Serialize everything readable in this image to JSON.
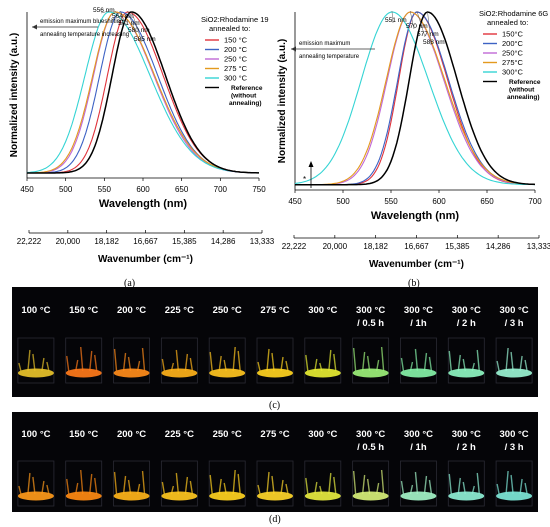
{
  "chart_data": [
    {
      "type": "line",
      "panel": "(a)",
      "title": "SiO2:Rhodamine 19 annealed to:",
      "xlabel": "Wavelength (nm)",
      "ylabel": "Normalized intensity (a.u.)",
      "x_ticks": [
        450,
        500,
        550,
        600,
        650,
        700,
        750
      ],
      "xlim": [
        450,
        750
      ],
      "secondary_xlabel": "Wavenumber (cm⁻¹)",
      "secondary_ticks": [
        "22,222",
        "20,000",
        "18,182",
        "16,667",
        "15,385",
        "14,286",
        "13,333"
      ],
      "grid": false,
      "legend_position": "top-right",
      "annotations": {
        "arrow_top": "emission maximum blueshifting",
        "arrow_bottom": "annealing temperature increasing"
      },
      "series": [
        {
          "name": "150 °C",
          "color": "#e0333b",
          "peak": 580,
          "peak_label": "580 nm",
          "sl": 26,
          "sr": 46
        },
        {
          "name": "200 °C",
          "color": "#3d62c4",
          "peak": 571,
          "peak_label": "571 nm",
          "sl": 27,
          "sr": 48
        },
        {
          "name": "250 °C",
          "color": "#c069d6",
          "peak": 564,
          "peak_label": "564 nm",
          "sl": 28,
          "sr": 50
        },
        {
          "name": "275 °C",
          "color": "#e39a1e",
          "peak": 564,
          "peak_label": "",
          "sl": 29,
          "sr": 51
        },
        {
          "name": "300 °C",
          "color": "#35d4d4",
          "peak": 556,
          "peak_label": "556 nm",
          "sl": 31,
          "sr": 53
        },
        {
          "name": "Reference (without annealing)",
          "color": "#000000",
          "peak": 585,
          "peak_label": "585 nm",
          "sl": 25,
          "sr": 44
        }
      ]
    },
    {
      "type": "line",
      "panel": "(b)",
      "title": "SiO2:Rhodamine 6G annealed to:",
      "xlabel": "Wavelength (nm)",
      "ylabel": "Normalized intensity (a.u.)",
      "x_ticks": [
        450,
        500,
        550,
        600,
        650,
        700
      ],
      "xlim": [
        450,
        700
      ],
      "secondary_xlabel": "Wavenumber (cm⁻¹)",
      "secondary_ticks": [
        "22,222",
        "20,000",
        "18,182",
        "16,667",
        "15,385",
        "14,286",
        "13,333"
      ],
      "grid": false,
      "legend_position": "top-right",
      "annotations": {
        "arrow_top": "emission maximum",
        "arrow_bottom": "annealing temperature",
        "star": "*"
      },
      "series": [
        {
          "name": "150°C",
          "color": "#e0333b",
          "peak": 577,
          "peak_label": "577 nm",
          "sl": 19,
          "sr": 32
        },
        {
          "name": "200°C",
          "color": "#3d62c4",
          "peak": 577,
          "peak_label": "",
          "sl": 20,
          "sr": 33
        },
        {
          "name": "250°C",
          "color": "#c069d6",
          "peak": 570,
          "peak_label": "570 nm",
          "sl": 24,
          "sr": 35
        },
        {
          "name": "275°C",
          "color": "#e39a1e",
          "peak": 570,
          "peak_label": "",
          "sl": 25,
          "sr": 36
        },
        {
          "name": "300°C",
          "color": "#35d4d4",
          "peak": 551,
          "peak_label": "551 nm",
          "sl": 32,
          "sr": 38
        },
        {
          "name": "Reference (without annealing)",
          "color": "#000000",
          "peak": 588,
          "peak_label": "588 nm",
          "sl": 19,
          "sr": 31
        }
      ]
    }
  ],
  "panels": {
    "a": "(a)",
    "b": "(b)",
    "c": "(c)",
    "d": "(d)"
  },
  "photos": {
    "c": {
      "labels": [
        "100 °C",
        "150 °C",
        "200 °C",
        "225 °C",
        "250 °C",
        "275 °C",
        "300 °C",
        "300 °C",
        "300 °C",
        "300 °C",
        "300 °C"
      ],
      "sublabels": [
        "",
        "",
        "",
        "",
        "",
        "",
        "",
        "/ 0.5 h",
        "/ 1h",
        "/ 2 h",
        "/ 3 h"
      ],
      "glow_colors": [
        "#e8c22a",
        "#ff7a1a",
        "#ff8c1a",
        "#ffb21a",
        "#ffc41f",
        "#ffd21f",
        "#e6ec32",
        "#9cf07a",
        "#86f2a8",
        "#8ef6c2",
        "#9af4d4"
      ]
    },
    "d": {
      "labels": [
        "100 °C",
        "150 °C",
        "200 °C",
        "225 °C",
        "250 °C",
        "275 °C",
        "300 °C",
        "300 °C",
        "300 °C",
        "300 °C",
        "300 °C"
      ],
      "sublabels": [
        "",
        "",
        "",
        "",
        "",
        "",
        "",
        "/ 0.5 h",
        "/ 1h",
        "/ 2 h",
        "/ 3 h"
      ],
      "glow_colors": [
        "#ff9a1a",
        "#ff8a12",
        "#ffb41a",
        "#ffc81f",
        "#ffd21f",
        "#ffd62a",
        "#e8ec40",
        "#d8f07a",
        "#a4f4c8",
        "#8ef0d6",
        "#7ee8d8"
      ]
    }
  }
}
